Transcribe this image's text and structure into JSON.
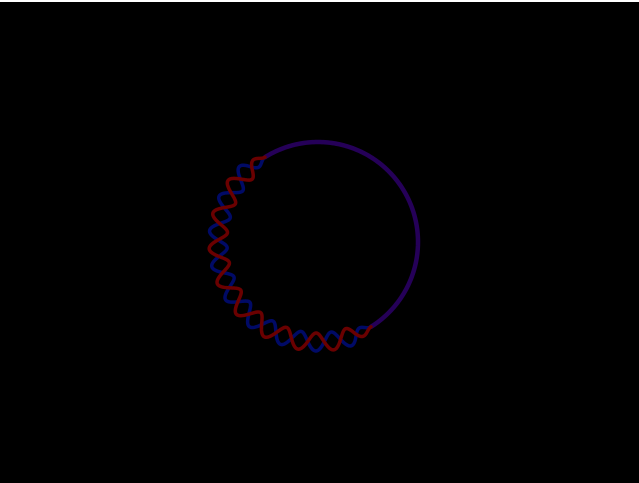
{
  "scene": {
    "background_color": "#000000",
    "top_strip_color": "#ffffff",
    "ring_color": "#250058",
    "wave_red_color": "#6a0000",
    "wave_blue_color": "#000a66",
    "wave_oscillations": 9.5,
    "wave_amplitude_fraction": 0.09
  }
}
